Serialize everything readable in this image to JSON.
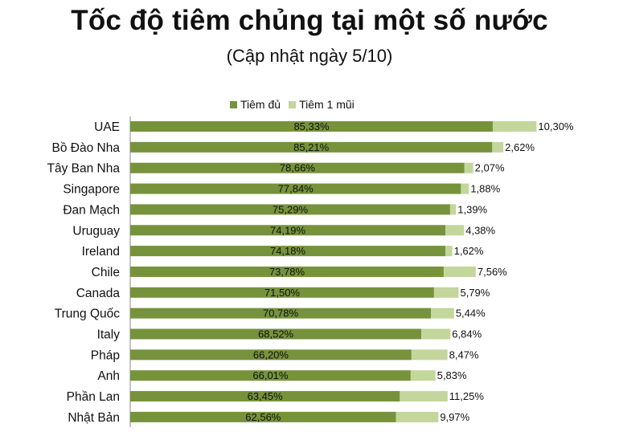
{
  "header": {
    "title": "Tốc độ tiêm chủng tại một số nước",
    "subtitle": "(Cập nhật ngày 5/10)"
  },
  "chart_data": {
    "type": "bar",
    "orientation": "horizontal",
    "stacked": true,
    "title": "Tốc độ tiêm chủng tại một số nước",
    "subtitle": "(Cập nhật ngày 5/10)",
    "legend_position": "top",
    "grid": false,
    "xlim": [
      0,
      100
    ],
    "categories": [
      "UAE",
      "Bồ Đào Nha",
      "Tây Ban Nha",
      "Singapore",
      "Đan Mạch",
      "Uruguay",
      "Ireland",
      "Chile",
      "Canada",
      "Trung Quốc",
      "Italy",
      "Pháp",
      "Anh",
      "Phần Lan",
      "Nhật Bản"
    ],
    "series": [
      {
        "name": "Tiêm đủ",
        "color": "#76933c",
        "values": [
          85.33,
          85.21,
          78.66,
          77.84,
          75.29,
          74.19,
          74.18,
          73.78,
          71.5,
          70.78,
          68.52,
          66.2,
          66.01,
          63.45,
          62.56
        ],
        "labels": [
          "85,33%",
          "85,21%",
          "78,66%",
          "77,84%",
          "75,29%",
          "74,19%",
          "74,18%",
          "73,78%",
          "71,50%",
          "70,78%",
          "68,52%",
          "66,20%",
          "66,01%",
          "63,45%",
          "62,56%"
        ]
      },
      {
        "name": "Tiêm 1 mũi",
        "color": "#c3d69b",
        "values": [
          10.3,
          2.62,
          2.07,
          1.88,
          1.39,
          4.38,
          1.62,
          7.56,
          5.79,
          5.44,
          6.84,
          8.47,
          5.83,
          11.25,
          9.97
        ],
        "labels": [
          "10,30%",
          "2,62%",
          "2,07%",
          "1,88%",
          "1,39%",
          "4,38%",
          "1,62%",
          "7,56%",
          "5,79%",
          "5,44%",
          "6,84%",
          "8,47%",
          "5,83%",
          "11,25%",
          "9,97%"
        ]
      }
    ]
  }
}
